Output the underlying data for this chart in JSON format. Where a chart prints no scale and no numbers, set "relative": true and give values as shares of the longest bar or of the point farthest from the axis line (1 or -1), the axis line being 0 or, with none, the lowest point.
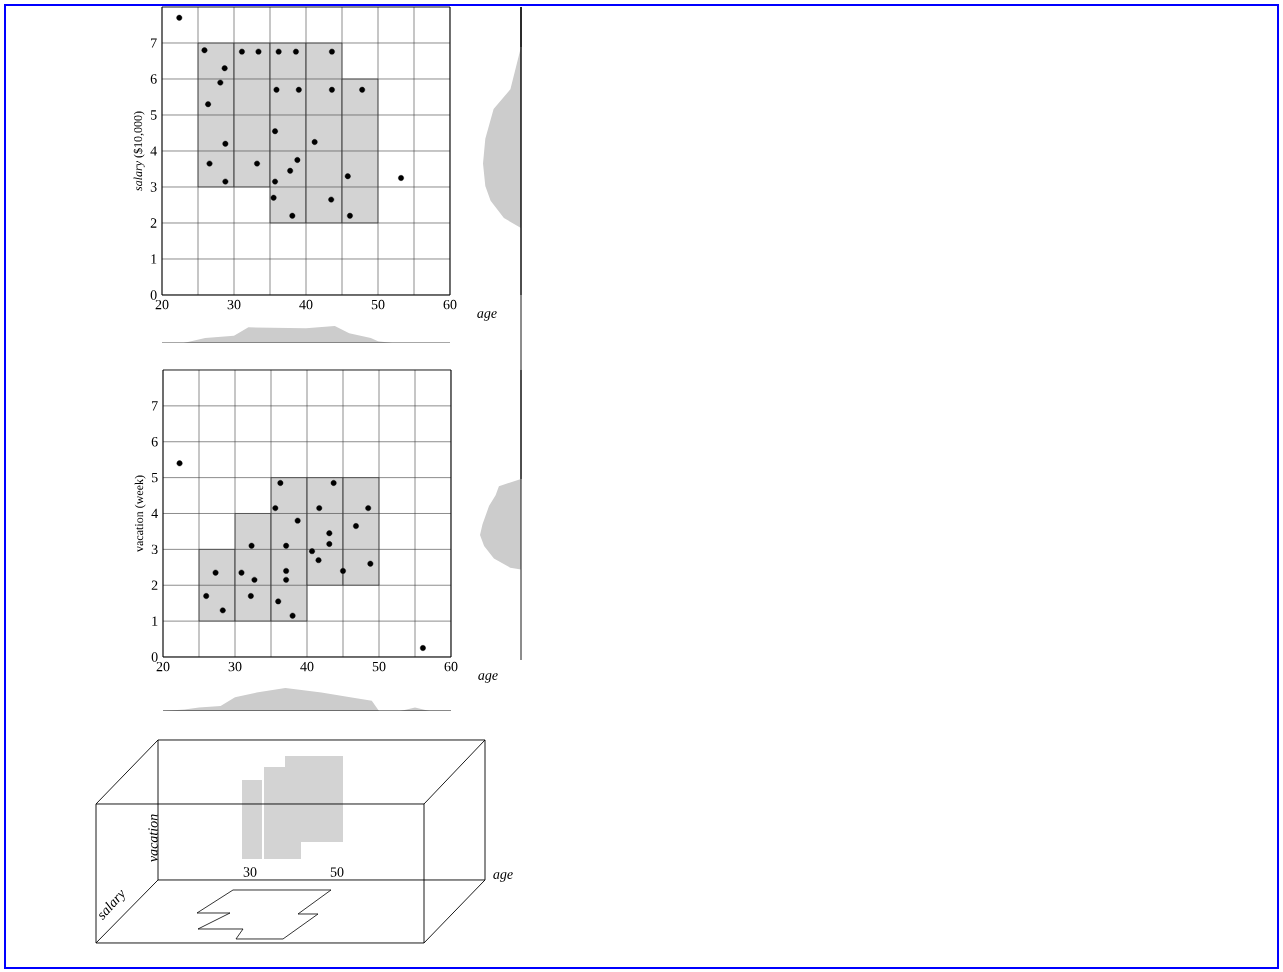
{
  "chart_data": [
    {
      "type": "scatter",
      "xlabel": "age",
      "ylabel": "*salary* ($10,000)",
      "xlim": [
        20,
        60
      ],
      "ylim": [
        0,
        8
      ],
      "grid": true,
      "marker": "circle",
      "xticks": [
        20,
        {
          "value": 25,
          "label": null
        },
        30,
        {
          "value": 35,
          "label": null
        },
        40,
        {
          "value": 45,
          "label": null
        },
        50,
        {
          "value": 55,
          "label": null
        },
        60
      ],
      "yticks": [
        0,
        1,
        2,
        3,
        4,
        5,
        6,
        7
      ],
      "series": [
        {
          "type": "bar",
          "color": "#d3d3d3",
          "x": [
            27.5,
            32.5,
            37.5,
            42.5,
            47.5
          ],
          "base": [
            3,
            3,
            2,
            2,
            2
          ],
          "values": [
            4,
            4,
            5,
            5,
            4
          ]
        },
        {
          "type": "scatter",
          "color": "#000000",
          "x": [
            22.4,
            25.9,
            31.1,
            33.4,
            36.2,
            38.6,
            43.6,
            28.7,
            28.1,
            26.4,
            35.9,
            39.0,
            43.6,
            47.8,
            35.7,
            41.2,
            28.8,
            26.6,
            33.2,
            38.8,
            37.8,
            35.7,
            28.8,
            45.8,
            53.2,
            35.5,
            43.5,
            38.1,
            46.1
          ],
          "values": [
            7.7,
            6.8,
            6.76,
            6.76,
            6.76,
            6.76,
            6.76,
            6.3,
            5.9,
            5.3,
            5.7,
            5.7,
            5.7,
            5.7,
            4.55,
            4.25,
            4.2,
            3.65,
            3.65,
            3.75,
            3.45,
            3.15,
            3.15,
            3.3,
            3.25,
            2.7,
            2.65,
            2.2,
            2.2
          ]
        }
      ]
    },
    {
      "type": "area",
      "relative": true,
      "color": "#cccccc",
      "xlim": [
        20,
        60
      ],
      "x": [
        20,
        23,
        26,
        30,
        32,
        40,
        44,
        46,
        49,
        50,
        52,
        60
      ],
      "values": [
        0,
        0,
        0.3,
        0.42,
        0.92,
        0.87,
        1,
        0.58,
        0.3,
        0.1,
        0,
        0
      ]
    },
    {
      "type": "scatter",
      "xlabel": "age",
      "ylabel": "vacation (week)",
      "xlim": [
        20,
        60
      ],
      "ylim": [
        0,
        8
      ],
      "grid": true,
      "marker": "circle",
      "xticks": [
        20,
        {
          "value": 25,
          "label": null
        },
        30,
        {
          "value": 35,
          "label": null
        },
        40,
        {
          "value": 45,
          "label": null
        },
        50,
        {
          "value": 55,
          "label": null
        },
        60
      ],
      "yticks": [
        0,
        1,
        2,
        3,
        4,
        5,
        6,
        7
      ],
      "series": [
        {
          "type": "bar",
          "color": "#d3d3d3",
          "x": [
            27.5,
            32.5,
            37.5,
            42.5,
            47.5
          ],
          "base": [
            1,
            1,
            1,
            2,
            2
          ],
          "values": [
            2,
            3,
            4,
            3,
            3
          ]
        },
        {
          "type": "scatter",
          "color": "#000000",
          "x": [
            22.3,
            36.3,
            43.7,
            35.6,
            41.7,
            48.5,
            38.7,
            46.8,
            43.1,
            43.1,
            32.3,
            37.1,
            40.7,
            41.6,
            27.3,
            30.9,
            37.1,
            32.7,
            37.1,
            45.0,
            48.8,
            26.0,
            32.2,
            36.0,
            28.3,
            38.0,
            56.1
          ],
          "values": [
            5.4,
            4.85,
            4.85,
            4.15,
            4.15,
            4.15,
            3.8,
            3.65,
            3.45,
            3.15,
            3.1,
            3.1,
            2.95,
            2.7,
            2.35,
            2.35,
            2.4,
            2.15,
            2.15,
            2.4,
            2.6,
            1.7,
            1.7,
            1.55,
            1.3,
            1.15,
            0.25
          ]
        }
      ]
    },
    {
      "type": "area",
      "relative": true,
      "color": "#cccccc",
      "xlim": [
        20,
        60
      ],
      "x": [
        20,
        23,
        25,
        28,
        30,
        33,
        37,
        42,
        46,
        49,
        50,
        53,
        55,
        57,
        60
      ],
      "values": [
        0,
        0.07,
        0.15,
        0.22,
        0.6,
        0.8,
        1,
        0.8,
        0.6,
        0.44,
        0,
        0,
        0.15,
        0,
        0
      ]
    },
    {
      "type": "other",
      "annotations": [
        "vacation",
        "salary",
        "30",
        "50",
        "age"
      ]
    }
  ]
}
